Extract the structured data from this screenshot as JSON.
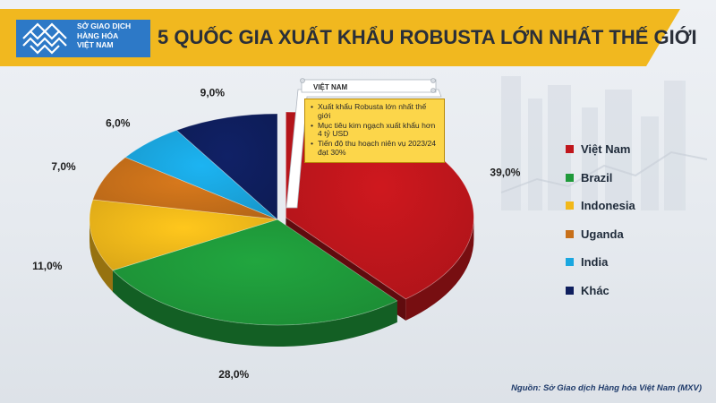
{
  "header": {
    "logo_lines": [
      "SỞ GIAO DỊCH",
      "HÀNG HÓA",
      "VIỆT NAM"
    ],
    "title": "5 QUỐC GIA XUẤT KHẨU ROBUSTA LỚN NHẤT THẾ GIỚI"
  },
  "callout": {
    "title": "VIỆT NAM",
    "bullets": [
      "Xuất khẩu Robusta lớn nhất thế giới",
      "Mục tiêu kim ngạch xuất khẩu hơn 4 tỷ USD",
      "Tiến độ thu hoạch niên vụ 2023/24 đạt 30%"
    ]
  },
  "source": "Nguồn: Sở Giao dịch Hàng hóa Việt Nam (MXV)",
  "chart_data": {
    "type": "pie",
    "style": "3d-exploded",
    "categories": [
      "Việt Nam",
      "Brazil",
      "Indonesia",
      "Uganda",
      "India",
      "Khác"
    ],
    "values": [
      39.0,
      28.0,
      11.0,
      7.0,
      6.0,
      9.0
    ],
    "value_labels": [
      "39,0%",
      "28,0%",
      "11,0%",
      "7,0%",
      "6,0%",
      "9,0%"
    ],
    "colors": [
      "#c0161c",
      "#1f9a3a",
      "#f2b81a",
      "#c8701a",
      "#1aa7e0",
      "#0f1f5e"
    ],
    "legend_position": "right"
  },
  "colors": {
    "header_bar": "#f1b81f",
    "logo_blue": "#2d79c7",
    "source_text": "#1e3a6a"
  }
}
